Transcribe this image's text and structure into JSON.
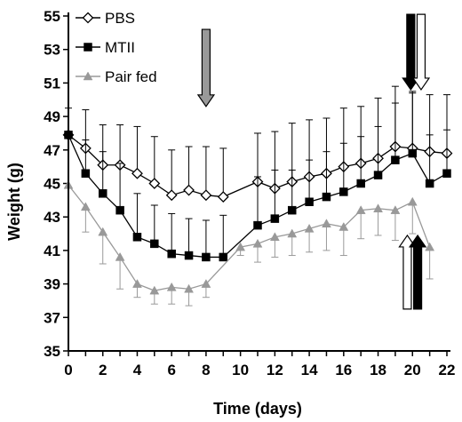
{
  "chart_data": {
    "type": "line",
    "xlabel": "Time (days)",
    "ylabel": "Weight (g)",
    "xlim": [
      0,
      22
    ],
    "ylim": [
      35,
      55
    ],
    "xticks": [
      "0",
      "2",
      "4",
      "6",
      "8",
      "10",
      "12",
      "14",
      "16",
      "18",
      "20",
      "22"
    ],
    "yticks": [
      "35",
      "37",
      "39",
      "41",
      "43",
      "45",
      "47",
      "49",
      "51",
      "53",
      "55"
    ],
    "legend_position": "top-left",
    "series": [
      {
        "name": "PBS",
        "marker": "diamond-open",
        "color": "#000000",
        "x": [
          0,
          1,
          2,
          3,
          4,
          5,
          6,
          7,
          8,
          9,
          11,
          12,
          13,
          14,
          15,
          16,
          17,
          18,
          19,
          20,
          21,
          22
        ],
        "y": [
          47.9,
          47.1,
          46.1,
          46.1,
          45.6,
          45.0,
          44.3,
          44.6,
          44.3,
          44.2,
          45.1,
          44.7,
          45.1,
          45.4,
          45.6,
          46.0,
          46.2,
          46.5,
          47.2,
          47.1,
          46.9,
          46.8
        ],
        "err": [
          1.6,
          2.3,
          2.4,
          2.4,
          2.8,
          2.8,
          2.7,
          2.6,
          2.9,
          2.9,
          2.9,
          3.4,
          3.5,
          3.4,
          3.3,
          3.5,
          3.4,
          3.6,
          3.6,
          3.3,
          3.4,
          3.5
        ]
      },
      {
        "name": "MTII",
        "marker": "square-filled",
        "color": "#000000",
        "x": [
          0,
          1,
          2,
          3,
          4,
          5,
          6,
          7,
          8,
          9,
          11,
          12,
          13,
          14,
          15,
          16,
          17,
          18,
          19,
          20,
          21,
          22
        ],
        "y": [
          47.9,
          45.6,
          44.4,
          43.4,
          41.8,
          41.4,
          40.8,
          40.7,
          40.6,
          40.6,
          42.5,
          42.9,
          43.4,
          43.9,
          44.2,
          44.5,
          45.0,
          45.5,
          46.4,
          46.8,
          45.0,
          45.6
        ],
        "err": [
          0,
          2.0,
          2.5,
          2.8,
          2.6,
          2.3,
          2.4,
          2.2,
          2.2,
          2.5,
          2.9,
          2.9,
          2.4,
          2.5,
          2.7,
          2.9,
          2.8,
          2.9,
          3.4,
          3.7,
          2.9,
          2.6
        ]
      },
      {
        "name": "Pair fed",
        "marker": "triangle-filled",
        "color": "#999999",
        "x": [
          0,
          1,
          2,
          3,
          4,
          5,
          6,
          7,
          8,
          10,
          11,
          12,
          13,
          14,
          15,
          16,
          17,
          18,
          19,
          20,
          21
        ],
        "y": [
          44.9,
          43.6,
          42.1,
          40.6,
          39.0,
          38.6,
          38.8,
          38.7,
          39.0,
          41.2,
          41.4,
          41.8,
          42.0,
          42.3,
          42.6,
          42.4,
          43.4,
          43.5,
          43.4,
          43.9,
          41.2
        ],
        "err": [
          0,
          1.5,
          1.9,
          1.9,
          0.8,
          0.8,
          1.0,
          1.0,
          0.8,
          0.5,
          1.1,
          1.2,
          1.3,
          1.4,
          1.6,
          1.7,
          1.7,
          1.6,
          1.8,
          1.9,
          1.9
        ]
      }
    ],
    "annotations": [
      {
        "type": "arrow",
        "direction": "down",
        "x": 8,
        "fill": "#999999",
        "y_from": 54.2,
        "y_to": 49.6
      },
      {
        "type": "arrow",
        "direction": "down",
        "x": 19.9,
        "fill": "#000000",
        "y_from": 55.1,
        "y_to": 50.6
      },
      {
        "type": "arrow",
        "direction": "down",
        "x": 20.5,
        "fill": "#ffffff",
        "y_from": 55.1,
        "y_to": 50.6
      },
      {
        "type": "arrow",
        "direction": "up",
        "x": 19.7,
        "fill": "#ffffff",
        "y_from": 37.5,
        "y_to": 41.9
      },
      {
        "type": "arrow",
        "direction": "up",
        "x": 20.3,
        "fill": "#000000",
        "y_from": 37.5,
        "y_to": 41.9
      }
    ]
  }
}
